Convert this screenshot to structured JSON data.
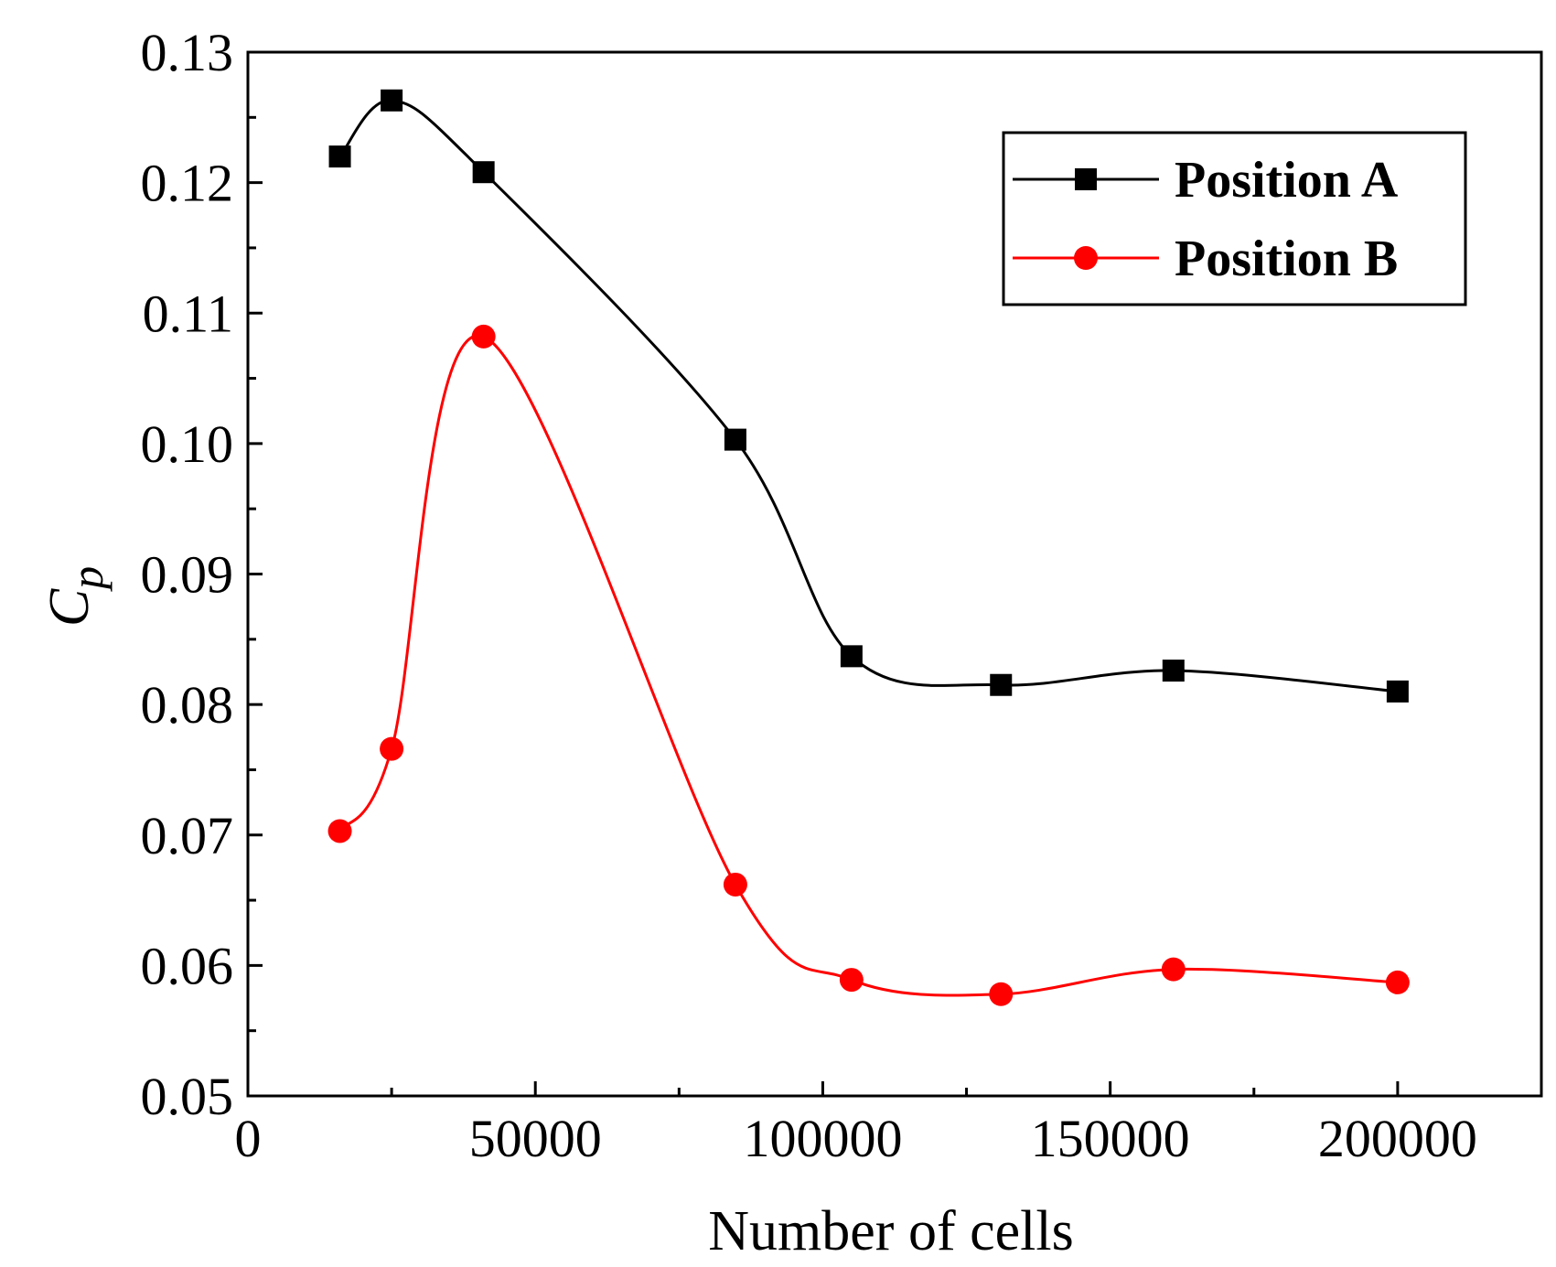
{
  "chart_data": {
    "type": "line",
    "title": "",
    "xlabel": "Number of cells",
    "ylabel": "C",
    "ylabel_subscript": "p",
    "xlim": [
      0,
      225000
    ],
    "ylim": [
      0.05,
      0.13
    ],
    "x_ticks": [
      0,
      50000,
      100000,
      150000,
      200000
    ],
    "x_tick_labels": [
      "0",
      "50000",
      "100000",
      "150000",
      "200000"
    ],
    "y_ticks": [
      0.05,
      0.06,
      0.07,
      0.08,
      0.09,
      0.1,
      0.11,
      0.12,
      0.13
    ],
    "y_tick_labels": [
      "0.05",
      "0.06",
      "0.07",
      "0.08",
      "0.09",
      "0.10",
      "0.11",
      "0.12",
      "0.13"
    ],
    "grid": false,
    "legend_position": "top-right",
    "x": [
      16000,
      25000,
      41000,
      84800,
      105000,
      131000,
      161000,
      200000
    ],
    "series": [
      {
        "name": "Position A",
        "color": "#000000",
        "marker": "square",
        "values": [
          0.122,
          0.1263,
          0.1208,
          0.1003,
          0.0837,
          0.0815,
          0.0826,
          0.081
        ]
      },
      {
        "name": "Position B",
        "color": "#ff0000",
        "marker": "circle",
        "values": [
          0.0703,
          0.0766,
          0.1082,
          0.0662,
          0.0589,
          0.0578,
          0.0597,
          0.0587
        ]
      }
    ]
  }
}
